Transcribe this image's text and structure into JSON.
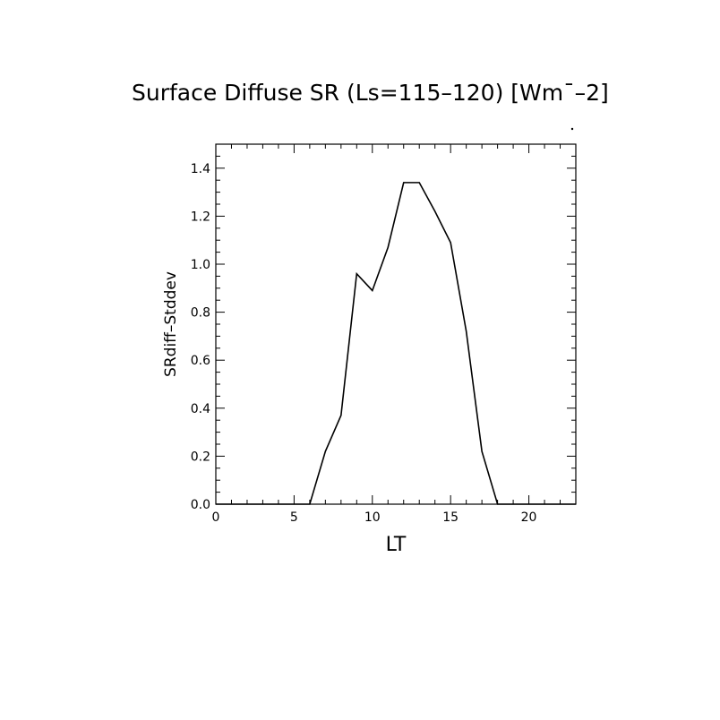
{
  "chart_data": {
    "type": "line",
    "title": "Surface Diffuse SR (Ls=115–120) [Wm¯–2]",
    "xlabel": "LT",
    "ylabel": "SRdiff–Stddev",
    "xlim": [
      0,
      23
    ],
    "ylim": [
      0,
      1.5
    ],
    "x_ticks": [
      0,
      5,
      10,
      15,
      20
    ],
    "x_tick_labels": [
      "0",
      "5",
      "10",
      "15",
      "20"
    ],
    "y_ticks": [
      0.0,
      0.2,
      0.4,
      0.6,
      0.8,
      1.0,
      1.2,
      1.4
    ],
    "y_tick_labels": [
      "0.0",
      "0.2",
      "0.4",
      "0.6",
      "0.8",
      "1.0",
      "1.2",
      "1.4"
    ],
    "grid": false,
    "series": [
      {
        "x": [
          0,
          1,
          2,
          3,
          4,
          5,
          6,
          7,
          8,
          9,
          10,
          11,
          12,
          13,
          14,
          15,
          16,
          17,
          18,
          19,
          20,
          21,
          22,
          23
        ],
        "y": [
          0,
          0,
          0,
          0,
          0,
          0,
          0,
          0.22,
          0.37,
          0.96,
          0.89,
          1.07,
          1.34,
          1.34,
          1.22,
          1.09,
          0.72,
          0.22,
          0,
          0,
          0,
          0,
          0,
          0
        ],
        "color": "#000000"
      }
    ]
  }
}
